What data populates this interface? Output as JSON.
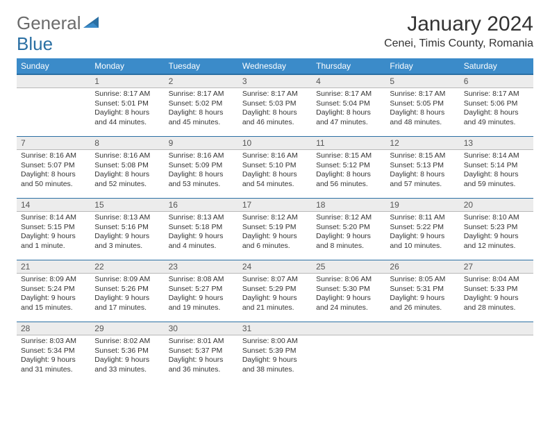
{
  "logo": {
    "text1": "General",
    "text2": "Blue"
  },
  "title": "January 2024",
  "location": "Cenei, Timis County, Romania",
  "colors": {
    "header_bg": "#3b8bc9",
    "header_border": "#2a6fa3",
    "daynum_bg": "#ececec",
    "text": "#333333",
    "logo_gray": "#6b6b6b",
    "logo_blue": "#2a6fa3"
  },
  "weekdays": [
    "Sunday",
    "Monday",
    "Tuesday",
    "Wednesday",
    "Thursday",
    "Friday",
    "Saturday"
  ],
  "weeks": [
    [
      null,
      {
        "n": "1",
        "sr": "8:17 AM",
        "ss": "5:01 PM",
        "dl": "8 hours and 44 minutes."
      },
      {
        "n": "2",
        "sr": "8:17 AM",
        "ss": "5:02 PM",
        "dl": "8 hours and 45 minutes."
      },
      {
        "n": "3",
        "sr": "8:17 AM",
        "ss": "5:03 PM",
        "dl": "8 hours and 46 minutes."
      },
      {
        "n": "4",
        "sr": "8:17 AM",
        "ss": "5:04 PM",
        "dl": "8 hours and 47 minutes."
      },
      {
        "n": "5",
        "sr": "8:17 AM",
        "ss": "5:05 PM",
        "dl": "8 hours and 48 minutes."
      },
      {
        "n": "6",
        "sr": "8:17 AM",
        "ss": "5:06 PM",
        "dl": "8 hours and 49 minutes."
      }
    ],
    [
      {
        "n": "7",
        "sr": "8:16 AM",
        "ss": "5:07 PM",
        "dl": "8 hours and 50 minutes."
      },
      {
        "n": "8",
        "sr": "8:16 AM",
        "ss": "5:08 PM",
        "dl": "8 hours and 52 minutes."
      },
      {
        "n": "9",
        "sr": "8:16 AM",
        "ss": "5:09 PM",
        "dl": "8 hours and 53 minutes."
      },
      {
        "n": "10",
        "sr": "8:16 AM",
        "ss": "5:10 PM",
        "dl": "8 hours and 54 minutes."
      },
      {
        "n": "11",
        "sr": "8:15 AM",
        "ss": "5:12 PM",
        "dl": "8 hours and 56 minutes."
      },
      {
        "n": "12",
        "sr": "8:15 AM",
        "ss": "5:13 PM",
        "dl": "8 hours and 57 minutes."
      },
      {
        "n": "13",
        "sr": "8:14 AM",
        "ss": "5:14 PM",
        "dl": "8 hours and 59 minutes."
      }
    ],
    [
      {
        "n": "14",
        "sr": "8:14 AM",
        "ss": "5:15 PM",
        "dl": "9 hours and 1 minute."
      },
      {
        "n": "15",
        "sr": "8:13 AM",
        "ss": "5:16 PM",
        "dl": "9 hours and 3 minutes."
      },
      {
        "n": "16",
        "sr": "8:13 AM",
        "ss": "5:18 PM",
        "dl": "9 hours and 4 minutes."
      },
      {
        "n": "17",
        "sr": "8:12 AM",
        "ss": "5:19 PM",
        "dl": "9 hours and 6 minutes."
      },
      {
        "n": "18",
        "sr": "8:12 AM",
        "ss": "5:20 PM",
        "dl": "9 hours and 8 minutes."
      },
      {
        "n": "19",
        "sr": "8:11 AM",
        "ss": "5:22 PM",
        "dl": "9 hours and 10 minutes."
      },
      {
        "n": "20",
        "sr": "8:10 AM",
        "ss": "5:23 PM",
        "dl": "9 hours and 12 minutes."
      }
    ],
    [
      {
        "n": "21",
        "sr": "8:09 AM",
        "ss": "5:24 PM",
        "dl": "9 hours and 15 minutes."
      },
      {
        "n": "22",
        "sr": "8:09 AM",
        "ss": "5:26 PM",
        "dl": "9 hours and 17 minutes."
      },
      {
        "n": "23",
        "sr": "8:08 AM",
        "ss": "5:27 PM",
        "dl": "9 hours and 19 minutes."
      },
      {
        "n": "24",
        "sr": "8:07 AM",
        "ss": "5:29 PM",
        "dl": "9 hours and 21 minutes."
      },
      {
        "n": "25",
        "sr": "8:06 AM",
        "ss": "5:30 PM",
        "dl": "9 hours and 24 minutes."
      },
      {
        "n": "26",
        "sr": "8:05 AM",
        "ss": "5:31 PM",
        "dl": "9 hours and 26 minutes."
      },
      {
        "n": "27",
        "sr": "8:04 AM",
        "ss": "5:33 PM",
        "dl": "9 hours and 28 minutes."
      }
    ],
    [
      {
        "n": "28",
        "sr": "8:03 AM",
        "ss": "5:34 PM",
        "dl": "9 hours and 31 minutes."
      },
      {
        "n": "29",
        "sr": "8:02 AM",
        "ss": "5:36 PM",
        "dl": "9 hours and 33 minutes."
      },
      {
        "n": "30",
        "sr": "8:01 AM",
        "ss": "5:37 PM",
        "dl": "9 hours and 36 minutes."
      },
      {
        "n": "31",
        "sr": "8:00 AM",
        "ss": "5:39 PM",
        "dl": "9 hours and 38 minutes."
      },
      null,
      null,
      null
    ]
  ],
  "labels": {
    "sunrise": "Sunrise:",
    "sunset": "Sunset:",
    "daylight": "Daylight:"
  }
}
